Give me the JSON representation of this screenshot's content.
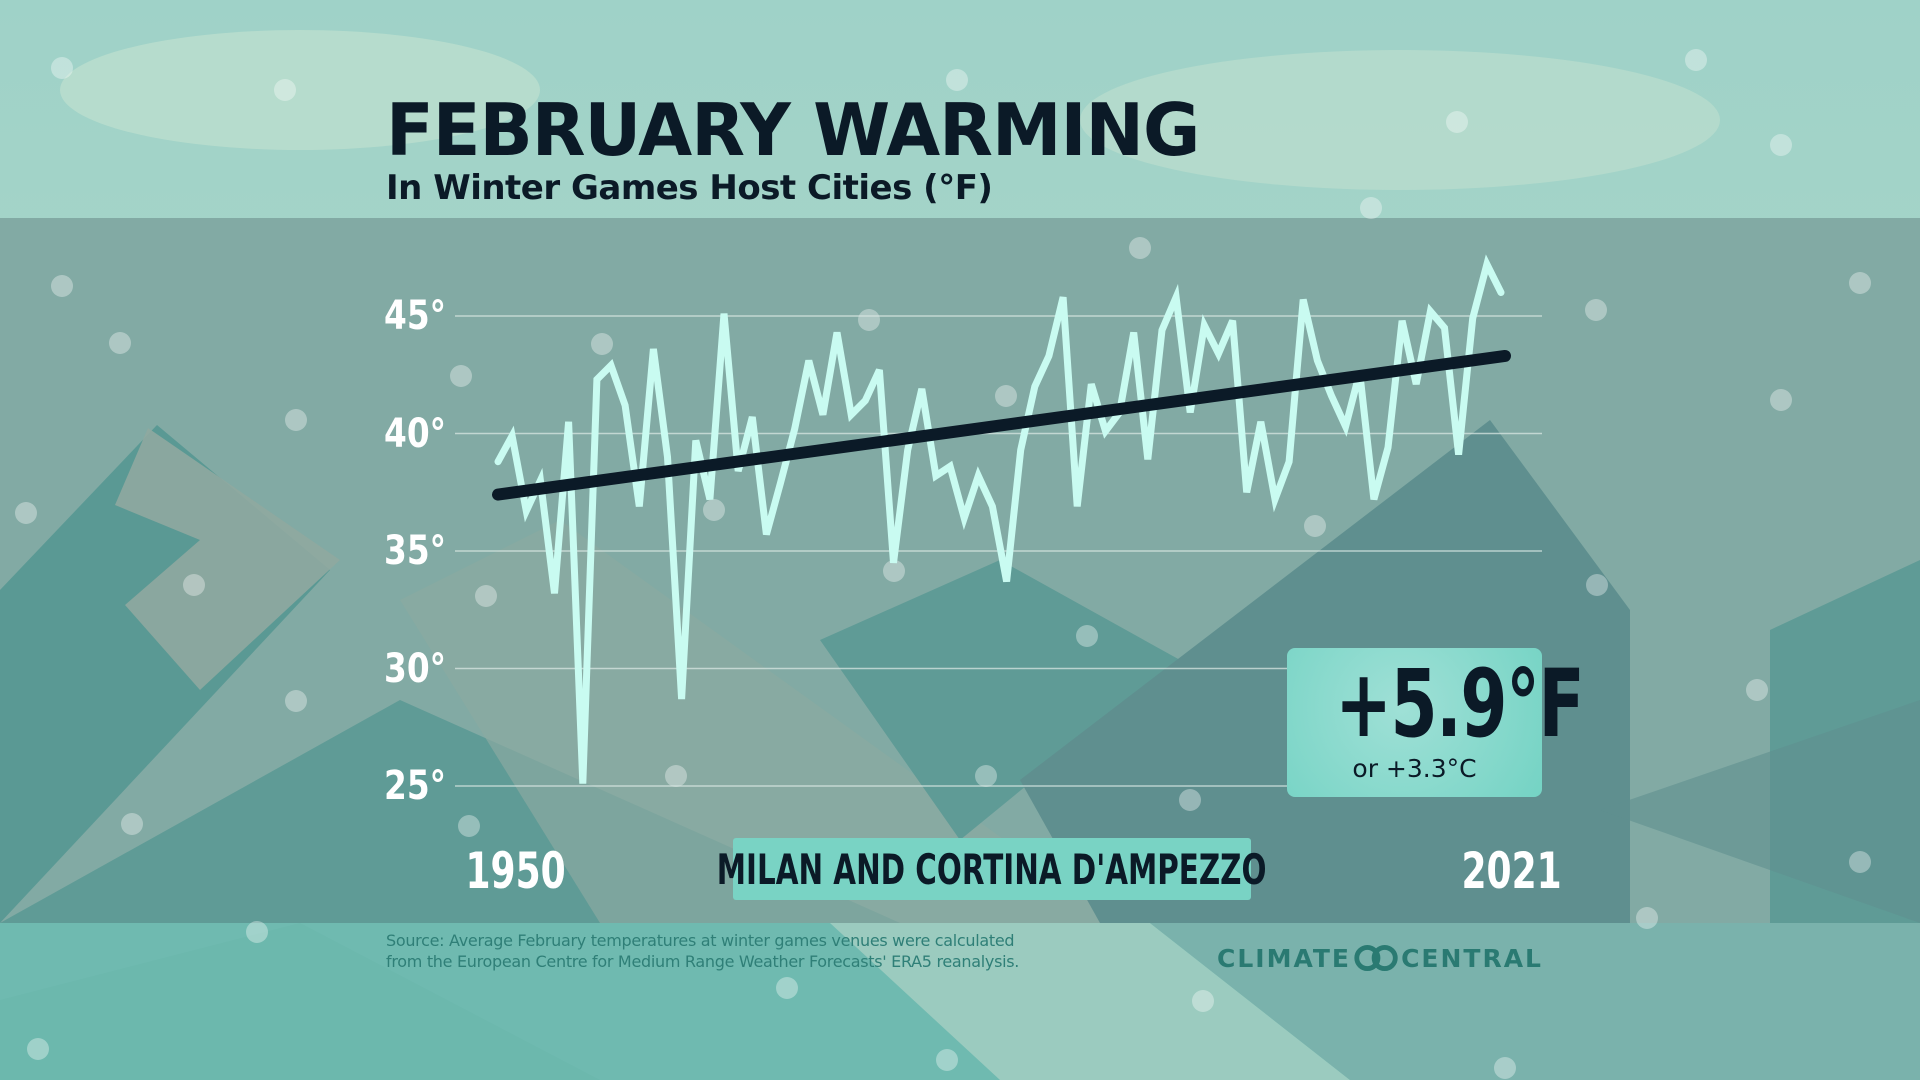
{
  "title": "FEBRUARY WARMING",
  "subtitle": "In Winter Games Host Cities (°F)",
  "callout": {
    "main": "+5.9°F",
    "sub": "or +3.3°C"
  },
  "city_label": "MILAN AND CORTINA D'AMPEZZO",
  "source": {
    "line1": "Source: Average February temperatures at winter games venues were calculated",
    "line2": "from the European Centre for Medium Range Weather Forecasts' ERA5 reanalysis."
  },
  "logo": {
    "left": "CLIMATE",
    "right": "CENTRAL"
  },
  "colors": {
    "line": "#c9fbf1",
    "trend": "#0b1a27",
    "accent": "#79d3c4"
  },
  "chart_data": {
    "type": "line",
    "title": "FEBRUARY WARMING",
    "subtitle": "In Winter Games Host Cities (°F)",
    "xlabel": "",
    "ylabel": "",
    "x_start_label": "1950",
    "x_end_label": "2021",
    "xlim": [
      1950,
      2021
    ],
    "ylim": [
      25,
      45
    ],
    "yticks": [
      45,
      40,
      35,
      30,
      25
    ],
    "ytick_labels": [
      "45°",
      "40°",
      "35°",
      "30°",
      "25°"
    ],
    "grid": true,
    "x": [
      1950,
      1951,
      1952,
      1953,
      1954,
      1955,
      1956,
      1957,
      1958,
      1959,
      1960,
      1961,
      1962,
      1963,
      1964,
      1965,
      1966,
      1967,
      1968,
      1969,
      1970,
      1971,
      1972,
      1973,
      1974,
      1975,
      1976,
      1977,
      1978,
      1979,
      1980,
      1981,
      1982,
      1983,
      1984,
      1985,
      1986,
      1987,
      1988,
      1989,
      1990,
      1991,
      1992,
      1993,
      1994,
      1995,
      1996,
      1997,
      1998,
      1999,
      2000,
      2001,
      2002,
      2003,
      2004,
      2005,
      2006,
      2007,
      2008,
      2009,
      2010,
      2011,
      2012,
      2013,
      2014,
      2015,
      2016,
      2017,
      2018,
      2019,
      2020,
      2021
    ],
    "series": [
      {
        "name": "February average temperature (°F)",
        "values": [
          38.8,
          39.9,
          36.7,
          38.0,
          33.2,
          40.5,
          25.1,
          42.3,
          42.9,
          41.2,
          36.9,
          43.6,
          39.0,
          28.7,
          39.7,
          37.2,
          45.1,
          38.4,
          40.7,
          35.7,
          37.9,
          40.2,
          43.1,
          40.8,
          44.3,
          40.8,
          41.4,
          42.7,
          34.5,
          39.3,
          41.9,
          38.2,
          38.6,
          36.4,
          38.2,
          36.9,
          33.7,
          39.3,
          42.0,
          43.3,
          45.8,
          36.9,
          42.1,
          40.1,
          40.9,
          44.3,
          38.9,
          44.4,
          45.8,
          40.9,
          44.6,
          43.4,
          44.8,
          37.5,
          40.5,
          37.2,
          38.8,
          45.7,
          43.1,
          41.6,
          40.3,
          42.6,
          37.2,
          39.4,
          44.8,
          42.1,
          45.2,
          44.5,
          39.1,
          44.9,
          47.2,
          46.0
        ]
      },
      {
        "name": "Trend",
        "values_at_ends": [
          37.4,
          43.3
        ]
      }
    ],
    "annotations": [
      "+5.9°F",
      "or +3.3°C",
      "MILAN AND CORTINA D'AMPEZZO"
    ]
  }
}
